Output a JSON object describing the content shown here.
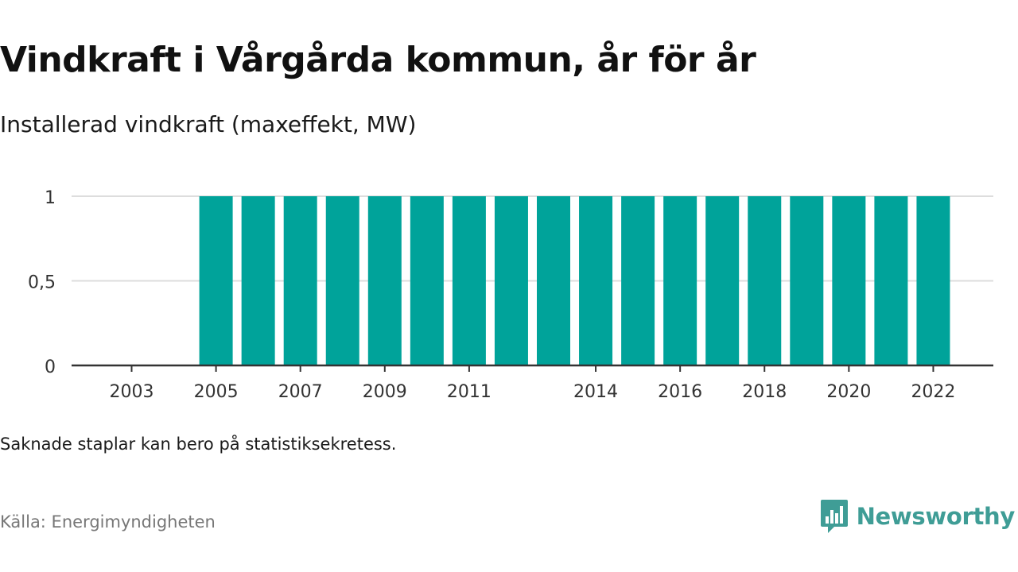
{
  "header": {
    "title": "Vindkraft i Vårgårda kommun, år för år",
    "subtitle": "Installerad vindkraft (maxeffekt, MW)"
  },
  "footer": {
    "note": "Saknade staplar kan bero på statistiksekretess.",
    "source": "Källa: Energimyndigheten",
    "brand": "Newsworthy",
    "brand_icon": "bar-chart-speech-bubble-icon"
  },
  "colors": {
    "bar": "#00a39a",
    "grid": "#dddddd",
    "axis": "#333333",
    "brand": "#3f9d96"
  },
  "chart_data": {
    "type": "bar",
    "categories": [
      "2003",
      "2004",
      "2005",
      "2006",
      "2007",
      "2008",
      "2009",
      "2010",
      "2011",
      "2012",
      "2013",
      "2014",
      "2015",
      "2016",
      "2017",
      "2018",
      "2019",
      "2020",
      "2021",
      "2022"
    ],
    "values": [
      null,
      null,
      1,
      1,
      1,
      1,
      1,
      1,
      1,
      1,
      1,
      1,
      1,
      1,
      1,
      1,
      1,
      1,
      1,
      1
    ],
    "x_tick_labels": [
      "2003",
      "2005",
      "2007",
      "2009",
      "2011",
      "2014",
      "2016",
      "2018",
      "2020",
      "2022"
    ],
    "y_ticks": [
      0,
      0.5,
      1
    ],
    "y_tick_labels": [
      "0",
      "0,5",
      "1"
    ],
    "ylim": [
      0,
      1
    ],
    "grid": true,
    "xlabel": "",
    "ylabel": ""
  }
}
